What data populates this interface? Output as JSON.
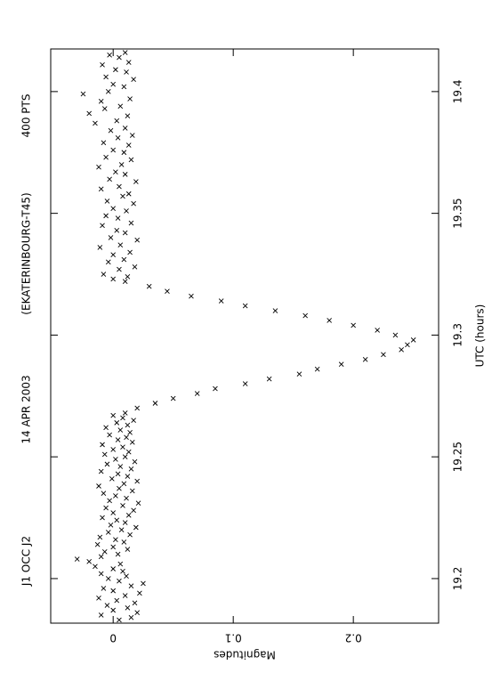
{
  "chart_data": {
    "type": "scatter",
    "title": [
      "J1 OCC J2",
      "14 APR 2003",
      "(EKATERINBOURG-T45)",
      "400 PTS"
    ],
    "x_label": "UTC (hours)",
    "y_label": "Magnitudes",
    "color": "#000000",
    "xlim": [
      19.1817,
      19.4175
    ],
    "xticks": [
      19.2,
      19.25,
      19.3,
      19.35,
      19.4
    ],
    "ylim": [
      -0.052,
      0.271
    ],
    "yticks": [
      0,
      0.1,
      0.2
    ],
    "x": [
      19.183,
      19.184,
      19.185,
      19.186,
      19.187,
      19.188,
      19.189,
      19.19,
      19.191,
      19.192,
      19.193,
      19.194,
      19.195,
      19.196,
      19.197,
      19.198,
      19.199,
      19.2,
      19.201,
      19.202,
      19.203,
      19.204,
      19.205,
      19.206,
      19.207,
      19.208,
      19.209,
      19.21,
      19.211,
      19.212,
      19.213,
      19.214,
      19.215,
      19.216,
      19.217,
      19.218,
      19.219,
      19.22,
      19.221,
      19.222,
      19.223,
      19.224,
      19.225,
      19.226,
      19.227,
      19.228,
      19.229,
      19.23,
      19.231,
      19.232,
      19.233,
      19.234,
      19.235,
      19.236,
      19.237,
      19.238,
      19.239,
      19.24,
      19.241,
      19.242,
      19.243,
      19.244,
      19.245,
      19.246,
      19.247,
      19.248,
      19.249,
      19.25,
      19.251,
      19.252,
      19.253,
      19.254,
      19.255,
      19.256,
      19.257,
      19.258,
      19.259,
      19.26,
      19.261,
      19.262,
      19.263,
      19.264,
      19.265,
      19.266,
      19.267,
      19.268,
      19.27,
      19.272,
      19.274,
      19.276,
      19.278,
      19.28,
      19.282,
      19.284,
      19.286,
      19.288,
      19.29,
      19.292,
      19.294,
      19.296,
      19.298,
      19.3,
      19.302,
      19.304,
      19.306,
      19.308,
      19.31,
      19.312,
      19.314,
      19.316,
      19.318,
      19.32,
      19.322,
      19.323,
      19.324,
      19.325,
      19.327,
      19.328,
      19.33,
      19.331,
      19.333,
      19.334,
      19.336,
      19.337,
      19.339,
      19.34,
      19.342,
      19.343,
      19.345,
      19.346,
      19.348,
      19.349,
      19.351,
      19.352,
      19.354,
      19.355,
      19.357,
      19.358,
      19.36,
      19.361,
      19.363,
      19.364,
      19.366,
      19.367,
      19.369,
      19.37,
      19.372,
      19.373,
      19.375,
      19.376,
      19.378,
      19.379,
      19.381,
      19.382,
      19.384,
      19.385,
      19.387,
      19.388,
      19.39,
      19.391,
      19.393,
      19.394,
      19.396,
      19.397,
      19.399,
      19.4,
      19.402,
      19.403,
      19.405,
      19.406,
      19.408,
      19.409,
      19.411,
      19.412,
      19.414,
      19.415,
      19.416
    ],
    "values": [
      0.005,
      0.015,
      -0.01,
      0.02,
      0.0,
      0.012,
      -0.005,
      0.018,
      0.003,
      -0.012,
      0.01,
      0.022,
      0.0,
      -0.008,
      0.015,
      0.025,
      0.005,
      -0.004,
      0.011,
      -0.01,
      0.008,
      0.0,
      -0.015,
      0.006,
      -0.02,
      -0.03,
      -0.01,
      0.004,
      -0.007,
      0.012,
      0.0,
      -0.013,
      0.009,
      0.002,
      -0.011,
      0.014,
      -0.004,
      0.007,
      0.019,
      -0.002,
      0.01,
      0.003,
      -0.009,
      0.013,
      0.0,
      0.017,
      -0.006,
      0.008,
      0.021,
      -0.003,
      0.011,
      0.002,
      -0.008,
      0.016,
      0.005,
      -0.012,
      0.009,
      0.02,
      -0.001,
      0.012,
      0.004,
      -0.01,
      0.015,
      0.006,
      -0.005,
      0.018,
      0.002,
      0.01,
      -0.007,
      0.013,
      0.0,
      0.008,
      -0.009,
      0.016,
      0.004,
      0.011,
      -0.003,
      0.014,
      0.006,
      -0.006,
      0.012,
      0.003,
      0.017,
      0.008,
      0.0,
      0.01,
      0.02,
      0.035,
      0.05,
      0.07,
      0.085,
      0.11,
      0.13,
      0.155,
      0.17,
      0.19,
      0.21,
      0.225,
      0.24,
      0.245,
      0.25,
      0.235,
      0.22,
      0.2,
      0.18,
      0.16,
      0.135,
      0.11,
      0.09,
      0.065,
      0.045,
      0.03,
      0.01,
      0.0,
      0.012,
      -0.008,
      0.005,
      0.018,
      -0.004,
      0.009,
      0.0,
      0.014,
      -0.011,
      0.006,
      0.02,
      -0.002,
      0.01,
      0.003,
      -0.009,
      0.015,
      0.004,
      -0.006,
      0.011,
      0.0,
      0.017,
      -0.005,
      0.008,
      0.013,
      -0.01,
      0.005,
      0.019,
      -0.003,
      0.01,
      0.002,
      -0.012,
      0.007,
      0.015,
      -0.006,
      0.009,
      0.0,
      0.013,
      -0.008,
      0.004,
      0.016,
      -0.002,
      0.01,
      -0.015,
      0.003,
      0.012,
      -0.02,
      -0.007,
      0.006,
      -0.01,
      0.014,
      -0.025,
      -0.004,
      0.009,
      0.0,
      0.017,
      -0.006,
      0.011,
      0.002,
      -0.009,
      0.013,
      0.005,
      -0.003,
      0.01
    ]
  }
}
